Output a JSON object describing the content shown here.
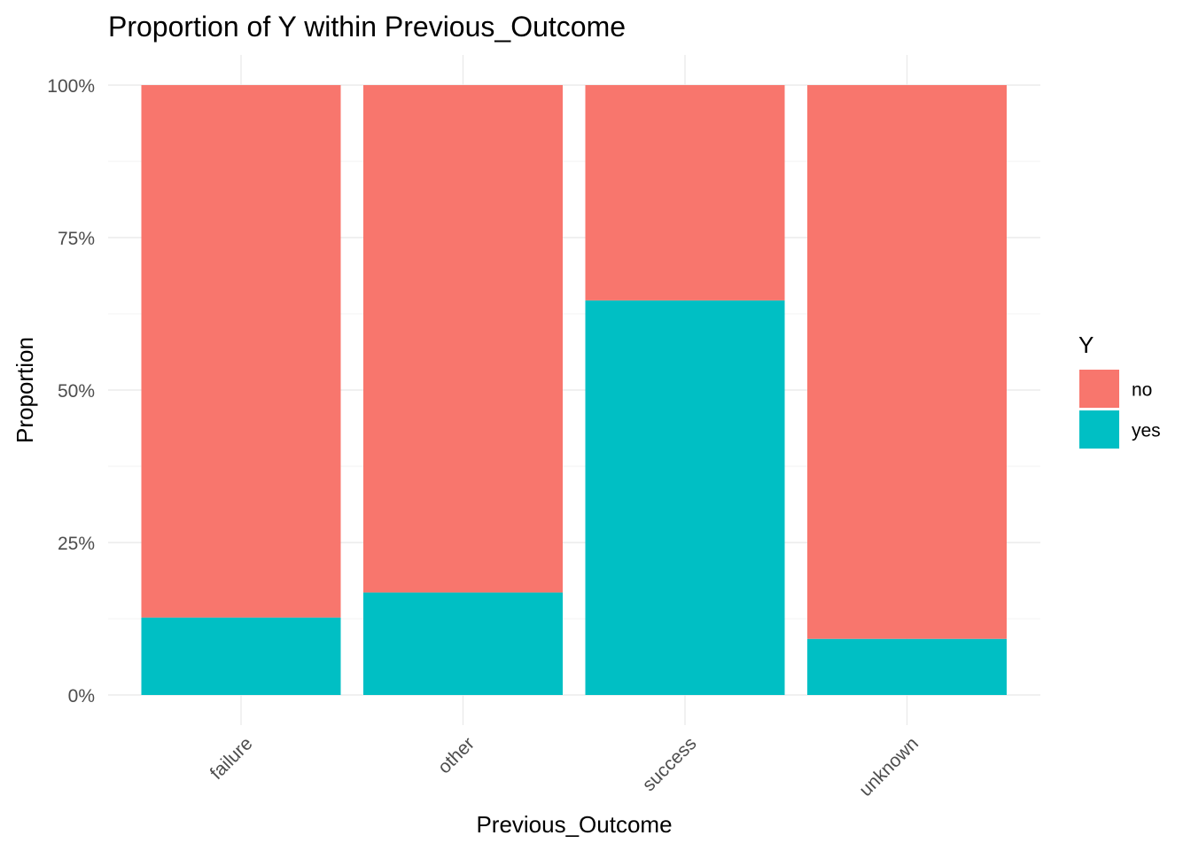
{
  "chart_data": {
    "type": "bar",
    "stacked": true,
    "title": "Proportion of Y within Previous_Outcome",
    "xlabel": "Previous_Outcome",
    "ylabel": "Proportion",
    "categories": [
      "failure",
      "other",
      "success",
      "unknown"
    ],
    "series": [
      {
        "name": "no",
        "color": "#F8766D",
        "values": [
          0.873,
          0.832,
          0.353,
          0.908
        ]
      },
      {
        "name": "yes",
        "color": "#00BFC4",
        "values": [
          0.127,
          0.168,
          0.647,
          0.092
        ]
      }
    ],
    "ylim": [
      0,
      1
    ],
    "yticks": [
      0,
      0.25,
      0.5,
      0.75,
      1
    ],
    "ytick_labels": [
      "0%",
      "25%",
      "50%",
      "75%",
      "100%"
    ],
    "legend": {
      "title": "Y",
      "position": "right",
      "entries": [
        "no",
        "yes"
      ]
    },
    "grid": true
  }
}
